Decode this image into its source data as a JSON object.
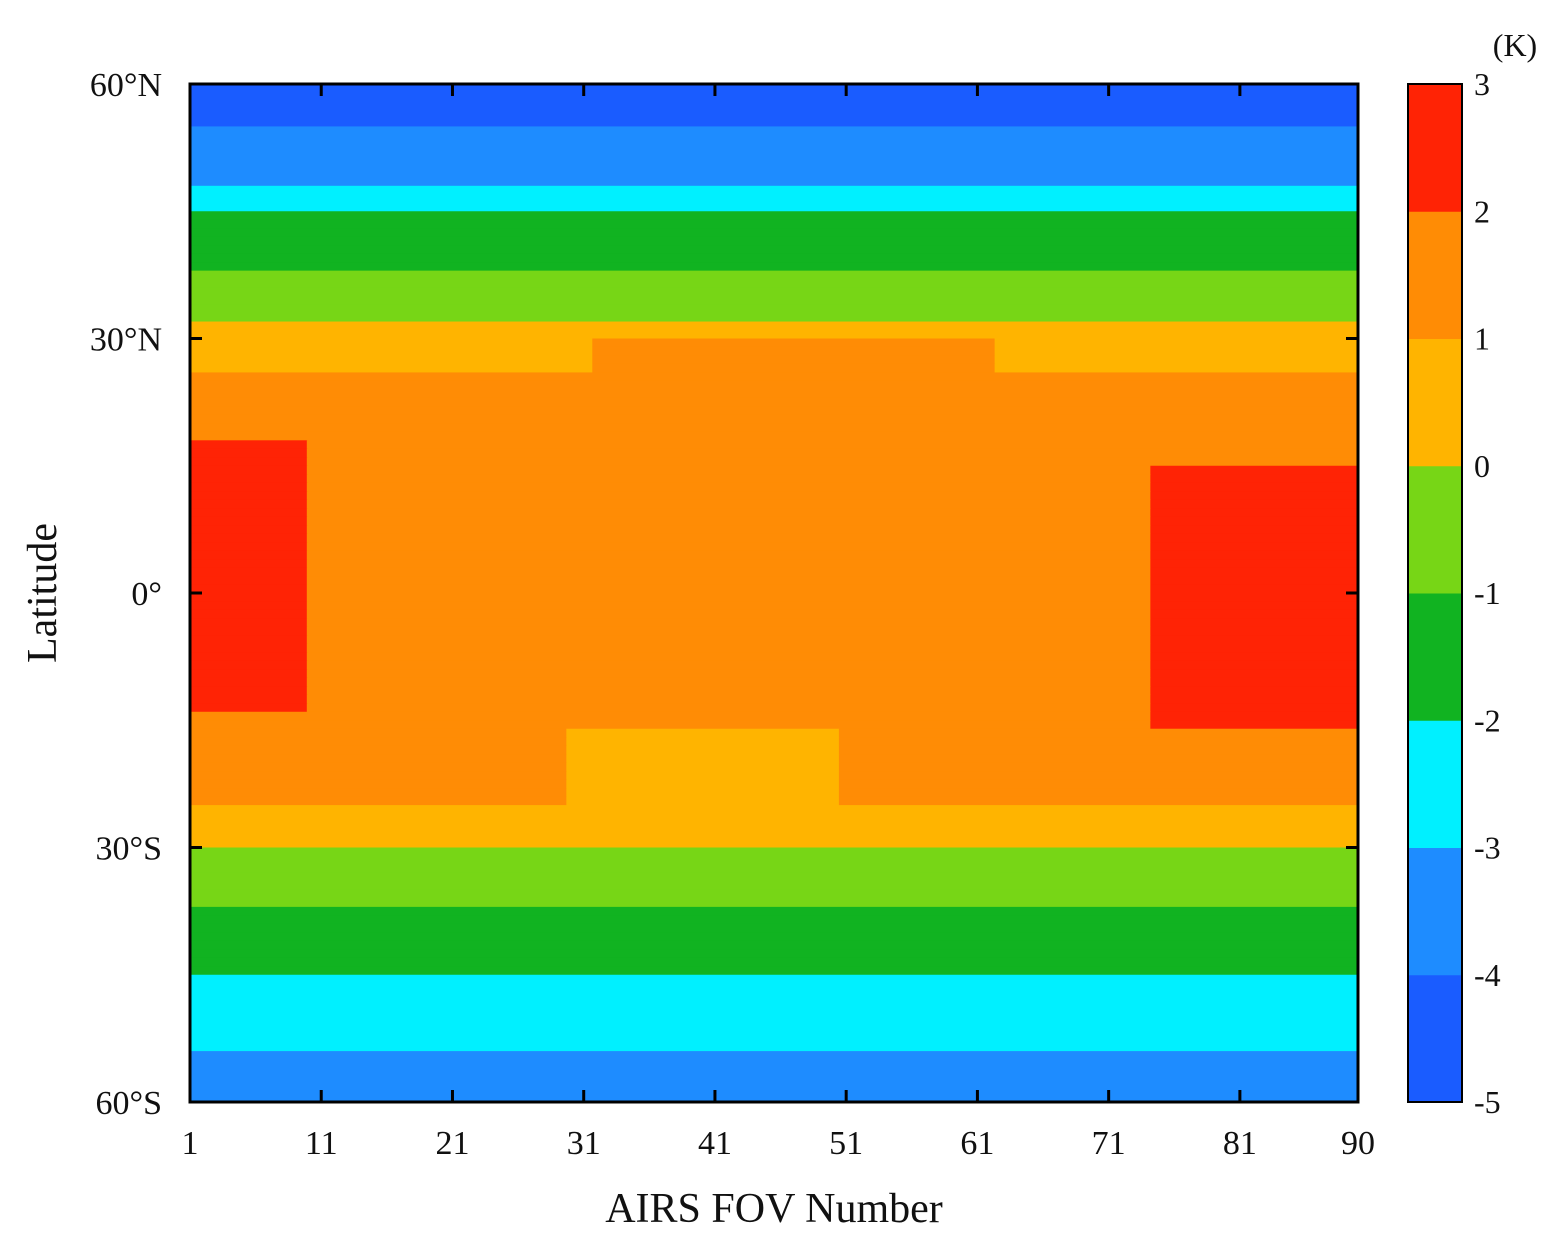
{
  "chart_data": {
    "type": "heatmap",
    "xlabel": "AIRS FOV Number",
    "ylabel": "Latitude",
    "x_range": [
      1,
      90
    ],
    "y_range": [
      -60,
      60
    ],
    "x_ticks": [
      {
        "value": 1,
        "label": "1"
      },
      {
        "value": 11,
        "label": "11"
      },
      {
        "value": 21,
        "label": "21"
      },
      {
        "value": 31,
        "label": "31"
      },
      {
        "value": 41,
        "label": "41"
      },
      {
        "value": 51,
        "label": "51"
      },
      {
        "value": 61,
        "label": "61"
      },
      {
        "value": 71,
        "label": "71"
      },
      {
        "value": 81,
        "label": "81"
      },
      {
        "value": 90,
        "label": "90"
      }
    ],
    "y_ticks": [
      {
        "value": 60,
        "label": "60°N"
      },
      {
        "value": 30,
        "label": "30°N"
      },
      {
        "value": 0,
        "label": "0°"
      },
      {
        "value": -30,
        "label": "30°S"
      },
      {
        "value": -60,
        "label": "60°S"
      }
    ],
    "colorbar": {
      "unit": "(K)",
      "range": [
        -5,
        3
      ],
      "ticks": [
        {
          "value": 3,
          "label": "3"
        },
        {
          "value": 2,
          "label": "2"
        },
        {
          "value": 1,
          "label": "1"
        },
        {
          "value": 0,
          "label": "0"
        },
        {
          "value": -1,
          "label": "-1"
        },
        {
          "value": -2,
          "label": "-2"
        },
        {
          "value": -3,
          "label": "-3"
        },
        {
          "value": -4,
          "label": "-4"
        },
        {
          "value": -5,
          "label": "-5"
        }
      ],
      "bins": [
        {
          "min": -5,
          "max": -4,
          "color": "#1a5cff"
        },
        {
          "min": -4,
          "max": -3,
          "color": "#1e8cff"
        },
        {
          "min": -3,
          "max": -2,
          "color": "#00f0ff"
        },
        {
          "min": -2,
          "max": -1,
          "color": "#11b321"
        },
        {
          "min": -1,
          "max": 0,
          "color": "#77d616"
        },
        {
          "min": 0,
          "max": 1,
          "color": "#ffb400"
        },
        {
          "min": 1,
          "max": 2,
          "color": "#ff8c05"
        },
        {
          "min": 2,
          "max": 3,
          "color": "#ff2305"
        }
      ]
    },
    "latitude_profile": [
      {
        "from": 55,
        "to": 60,
        "value": -4.5
      },
      {
        "from": 48,
        "to": 55,
        "value": -3.5
      },
      {
        "from": 45,
        "to": 48,
        "value": -2.5
      },
      {
        "from": 38,
        "to": 45,
        "value": -1.5
      },
      {
        "from": 32,
        "to": 38,
        "value": -0.5
      },
      {
        "from": 26,
        "to": 32,
        "value": 0.5
      },
      {
        "from": -25,
        "to": 26,
        "value": 1.5
      },
      {
        "from": -30,
        "to": -25,
        "value": 0.5
      },
      {
        "from": -37,
        "to": -30,
        "value": -0.5
      },
      {
        "from": -45,
        "to": -37,
        "value": -1.5
      },
      {
        "from": -54,
        "to": -45,
        "value": -2.5
      },
      {
        "from": -60,
        "to": -54,
        "value": -3.5
      }
    ],
    "regions": [
      {
        "lat_from": -14,
        "lat_to": 18,
        "fov_from": 1,
        "fov_to": 9,
        "value": 2.5
      },
      {
        "lat_from": -16,
        "lat_to": 15,
        "fov_from": 75,
        "fov_to": 90,
        "value": 2.5
      },
      {
        "lat_from": 26,
        "lat_to": 30,
        "fov_from": 32,
        "fov_to": 62,
        "value": 1.5
      },
      {
        "lat_from": -25,
        "lat_to": -16,
        "fov_from": 30,
        "fov_to": 50,
        "value": 0.5
      }
    ]
  }
}
